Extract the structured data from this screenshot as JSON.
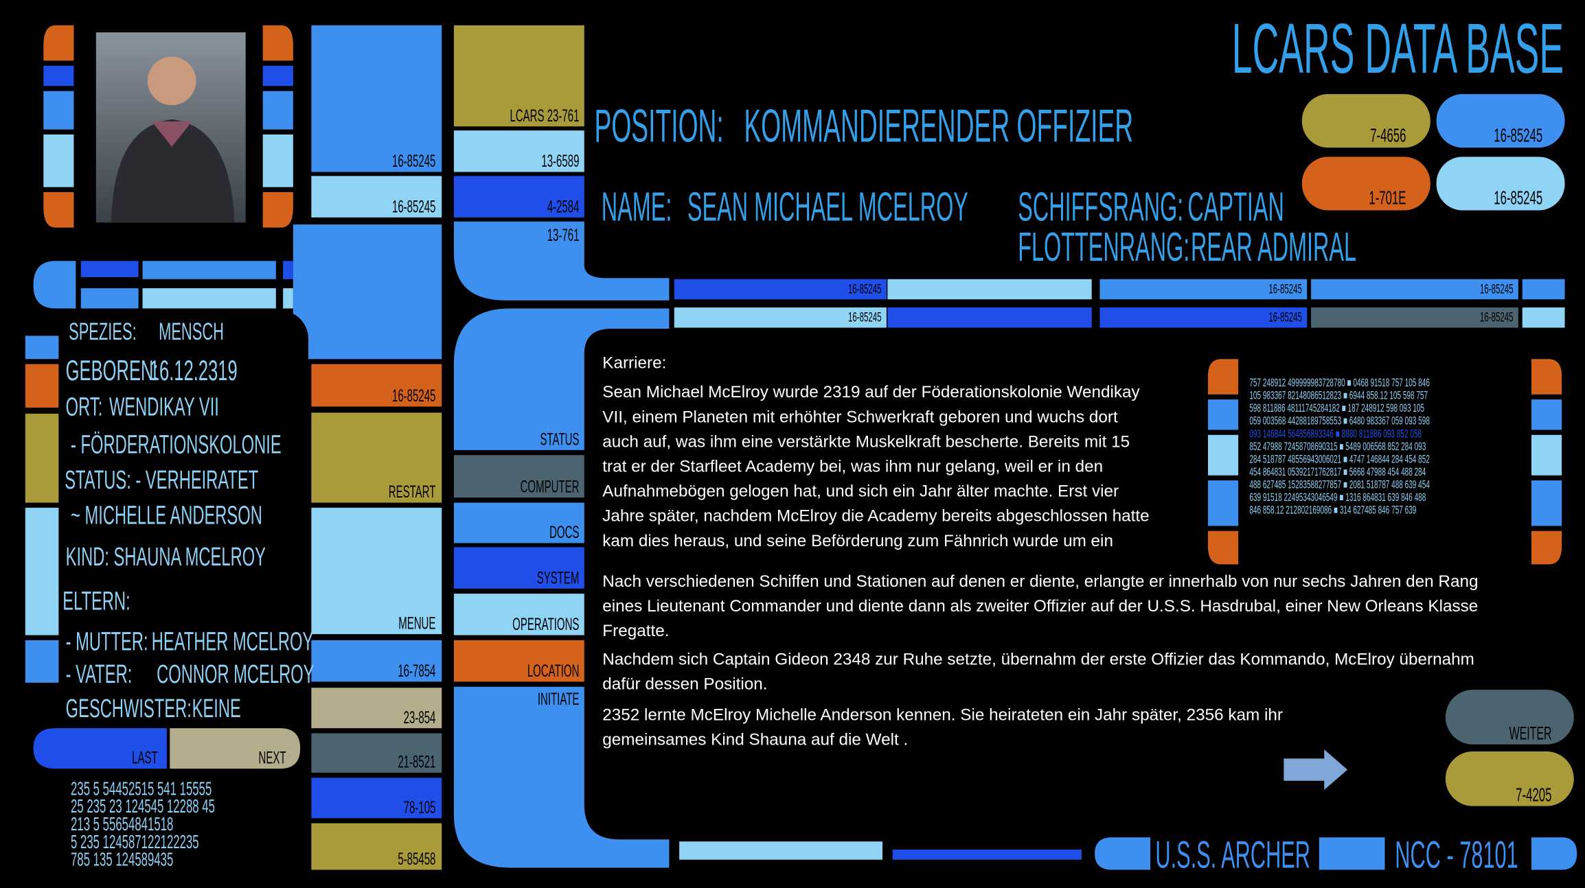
{
  "header": {
    "title": "LCARS DATA BASE"
  },
  "profile": {
    "position_label": "POSITION:",
    "position": "KOMMANDIERENDER OFFIZIER",
    "name_label": "NAME:",
    "name": "SEAN MICHAEL MCELROY",
    "ship_rank_label": "SCHIFFSRANG:",
    "ship_rank": "CAPTIAN",
    "fleet_rank_label": "FLOTTENRANG:",
    "fleet_rank": "REAR ADMIRAL"
  },
  "left_column": [
    "16-85245",
    "16-85245",
    "16-85245",
    "RESTART",
    "MENUE",
    "16-7854",
    "23-854",
    "21-8521",
    "78-105",
    "5-85458"
  ],
  "mid_column": [
    "LCARS 23-761",
    "13-6589",
    "4-2584",
    "13-761",
    "STATUS",
    "COMPUTER",
    "DOCS",
    "SYSTEM",
    "OPERATIONS",
    "LOCATION",
    "INITIATE"
  ],
  "pills": [
    "7-4656",
    "16-85245",
    "1-701E",
    "16-85245"
  ],
  "bars": [
    "16-85245",
    "16-85245",
    "16-85245",
    "16-85245",
    "16-85245",
    "16-85245"
  ],
  "info": [
    [
      "SPEZIES:",
      "MENSCH"
    ],
    [
      "GEBOREN:",
      "16.12.2319"
    ],
    [
      "ORT:",
      "WENDIKAY VII"
    ],
    [
      "- FÖRDERATIONSKOLONIE"
    ],
    [
      "STATUS: - VERHEIRATET"
    ],
    [
      "~ MICHELLE ANDERSON"
    ],
    [
      "KIND: SHAUNA MCELROY"
    ],
    [
      "ELTERN:"
    ],
    [
      "- MUTTER:",
      "HEATHER MCELROY"
    ],
    [
      "- VATER:",
      "CONNOR MCELROY"
    ],
    [
      "GESCHWISTER:",
      "KEINE"
    ]
  ],
  "nav": {
    "last": "LAST",
    "next": "NEXT"
  },
  "codes": [
    "235      5      54452515 541  15555",
    "  25    235     23 124545 12288 45",
    "213      5      55654841518",
    "    5    235     124587122122235",
    "785    135     124589435"
  ],
  "grid": [
    "757  248912  499999983728780  ■  0468  91518  757  105  846",
    "105  983367  82148086512823  ■  6944  858.12  105  598  757",
    "598  811886  48111745284182  ■  187  248912  598  093  105",
    "059  003568  44288189758553  ■  6480  983367  059  093  598",
    "093  146844  564856893346  ■  8880  811886  093  852  058",
    "852  47988  72458708690315  ■  5489  006568  852  284  093",
    "284  518787  48556943006021  ■  4747  146844  284  454  852",
    "454  864831  05392171762817  ■  5668  47988  454  488  284",
    "488  627485  15283588277857  ■  2081  518787  488  639  454",
    "639  91518  22495343046549  ■  1316  864831  639  846  488",
    "846  858.12  212802169086  ■  314  627485  846  757  639"
  ],
  "article": {
    "heading": "Karriere:",
    "paragraphs": [
      [
        "Sean Michael McElroy wurde 2319 auf der Föderationskolonie Wendikay",
        "VII, einem Planeten mit erhöhter Schwerkraft geboren und wuchs dort",
        "auch auf, was ihm eine verstärkte Muskelkraft bescherte. Bereits mit 15",
        "trat er der Starfleet Academy bei, was ihm nur gelang, weil er in den",
        "Aufnahmebögen gelogen hat, und sich ein Jahr älter machte. Erst vier",
        "Jahre später, nachdem McElroy die Academy bereits abgeschlossen hatte",
        "kam dies heraus, und seine Beförderung zum Fähnrich wurde um ein"
      ],
      [
        "Nach verschiedenen Schiffen und Stationen auf denen er diente, erlangte er innerhalb von nur sechs Jahren den Rang",
        "eines Lieutenant Commander und diente dann als zweiter Offizier auf der U.S.S. Hasdrubal, einer  New Orleans  Klasse",
        "Fregatte."
      ],
      [
        "Nachdem sich Captain Gideon 2348 zur Ruhe setzte, übernahm der erste Offizier das Kommando, McElroy übernahm",
        "dafür dessen Position."
      ],
      [
        "2352 lernte McElroy Michelle Anderson kennen. Sie heirateten ein Jahr später, 2356 kam ihr",
        "gemeinsames Kind Shauna auf die Welt ."
      ]
    ]
  },
  "footer": {
    "next_label": "WEITER",
    "code": "7-4205",
    "ship": "U.S.S. ARCHER",
    "registry": "NCC - 78101"
  }
}
